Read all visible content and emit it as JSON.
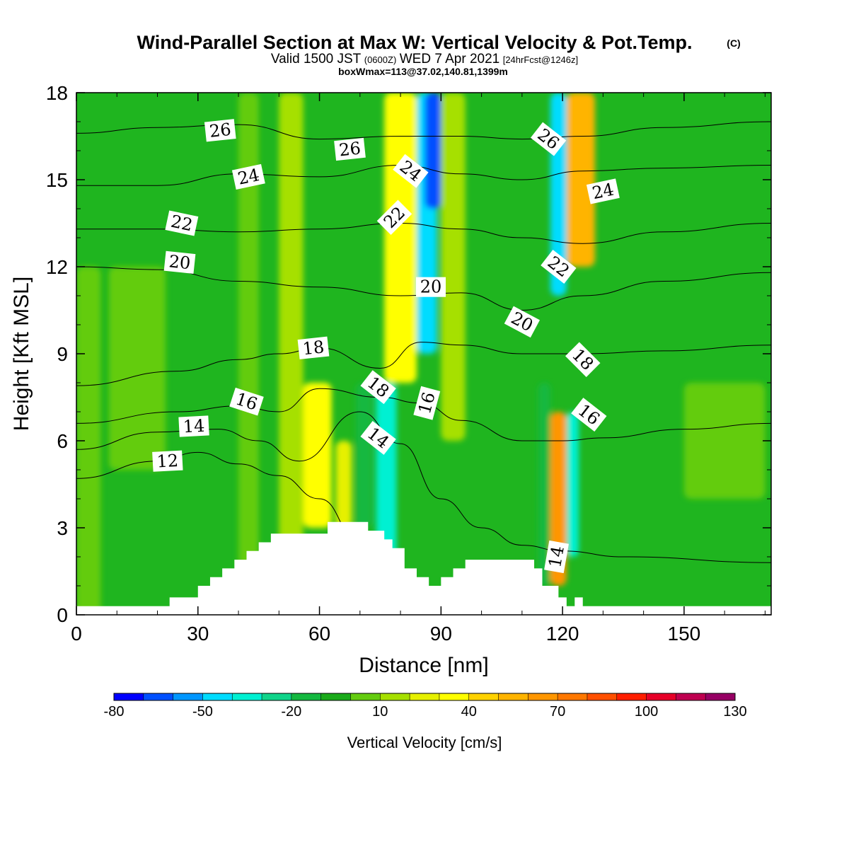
{
  "title": {
    "main": "Wind-Parallel Section at Max W: Vertical Velocity & Pot.Temp.",
    "copyright": "(C)",
    "valid_prefix": "Valid 1500 JST",
    "valid_utc": "(0600Z)",
    "valid_date": "WED 7 Apr 2021",
    "forecast": "[24hrFcst@1246z]",
    "box_info": "boxWmax=113@37.02,140.81,1399m"
  },
  "chart_data": {
    "type": "heatmap",
    "xlabel": "Distance [nm]",
    "ylabel": "Height [Kft MSL]",
    "xlim": [
      0,
      171.5
    ],
    "ylim": [
      0,
      18
    ],
    "x_ticks": [
      0,
      30,
      60,
      90,
      120,
      150
    ],
    "y_ticks": [
      0,
      3,
      6,
      9,
      12,
      15,
      18
    ],
    "colorbar": {
      "title": "Vertical Velocity [cm/s]",
      "ticks": [
        -80,
        -50,
        -20,
        10,
        40,
        70,
        100,
        130
      ],
      "levels": [
        -80,
        -70,
        -60,
        -50,
        -40,
        -30,
        -20,
        -10,
        0,
        10,
        20,
        30,
        40,
        50,
        60,
        70,
        80,
        90,
        100,
        110,
        120,
        130
      ],
      "colors": [
        "#0000ff",
        "#0050ff",
        "#0096ff",
        "#00dcff",
        "#00f0d2",
        "#10d48a",
        "#14b840",
        "#1aaa1a",
        "#64cc10",
        "#a6e000",
        "#e6f000",
        "#ffff00",
        "#ffd200",
        "#ffb400",
        "#ff9600",
        "#ff7800",
        "#ff5000",
        "#ff1e00",
        "#e60028",
        "#be0050",
        "#960064"
      ]
    },
    "background_color": "#1fb51f",
    "vertical_velocity_bands": [
      {
        "x": 0,
        "width": 6,
        "zbot": 0,
        "ztop": 12,
        "value": 5
      },
      {
        "x": 8,
        "width": 14,
        "zbot": 5,
        "ztop": 12,
        "value": 3
      },
      {
        "x": 40,
        "width": 5,
        "zbot": 1,
        "ztop": 18,
        "value": 5
      },
      {
        "x": 50,
        "width": 6,
        "zbot": 1,
        "ztop": 18,
        "value": 12
      },
      {
        "x": 56,
        "width": 7,
        "zbot": 3,
        "ztop": 8,
        "value": 32
      },
      {
        "x": 64,
        "width": 4,
        "zbot": 3,
        "ztop": 6,
        "value": 22
      },
      {
        "x": 69,
        "width": 4,
        "zbot": 3,
        "ztop": 8,
        "value": -12
      },
      {
        "x": 74,
        "width": 5,
        "zbot": 1,
        "ztop": 8,
        "value": -40
      },
      {
        "x": 76,
        "width": 8,
        "zbot": 8,
        "ztop": 18,
        "value": 35
      },
      {
        "x": 84,
        "width": 5,
        "zbot": 9,
        "ztop": 18,
        "value": -45
      },
      {
        "x": 86,
        "width": 4,
        "zbot": 14,
        "ztop": 18,
        "value": -65
      },
      {
        "x": 90,
        "width": 6,
        "zbot": 6,
        "ztop": 18,
        "value": 15
      },
      {
        "x": 114,
        "width": 3,
        "zbot": 1,
        "ztop": 8,
        "value": -20
      },
      {
        "x": 117,
        "width": 4,
        "zbot": 1,
        "ztop": 7,
        "value": 65
      },
      {
        "x": 121,
        "width": 3,
        "zbot": 2,
        "ztop": 7,
        "value": -35
      },
      {
        "x": 117,
        "width": 4,
        "zbot": 11,
        "ztop": 18,
        "value": -45
      },
      {
        "x": 121,
        "width": 7,
        "zbot": 12,
        "ztop": 18,
        "value": 50
      },
      {
        "x": 150,
        "width": 20,
        "zbot": 4,
        "ztop": 8,
        "value": 5
      }
    ],
    "terrain": [
      [
        0,
        0.3
      ],
      [
        22,
        0.3
      ],
      [
        23,
        0.6
      ],
      [
        29,
        0.6
      ],
      [
        30,
        1.0
      ],
      [
        33,
        1.3
      ],
      [
        36,
        1.6
      ],
      [
        39,
        1.9
      ],
      [
        42,
        2.2
      ],
      [
        45,
        2.5
      ],
      [
        48,
        2.8
      ],
      [
        61,
        2.8
      ],
      [
        62,
        3.2
      ],
      [
        71,
        3.2
      ],
      [
        72,
        2.9
      ],
      [
        76,
        2.6
      ],
      [
        78,
        2.3
      ],
      [
        81,
        1.6
      ],
      [
        84,
        1.3
      ],
      [
        87,
        1.0
      ],
      [
        90,
        1.3
      ],
      [
        93,
        1.6
      ],
      [
        96,
        1.9
      ],
      [
        112,
        1.9
      ],
      [
        113,
        1.6
      ],
      [
        115,
        1.0
      ],
      [
        117,
        1.0
      ],
      [
        119,
        0.6
      ],
      [
        121,
        0.3
      ],
      [
        123,
        0.6
      ],
      [
        125,
        0.3
      ],
      [
        171.5,
        0.3
      ]
    ],
    "theta_contours": [
      {
        "label": "12",
        "points": [
          [
            0,
            4.7
          ],
          [
            20,
            5.3
          ],
          [
            30,
            5.6
          ],
          [
            40,
            5.2
          ],
          [
            50,
            4.8
          ],
          [
            60,
            4.0
          ],
          [
            70,
            2.5
          ]
        ]
      },
      {
        "label": "14",
        "points": [
          [
            0,
            5.7
          ],
          [
            20,
            6.3
          ],
          [
            35,
            6.4
          ],
          [
            45,
            6.0
          ],
          [
            55,
            5.3
          ],
          [
            70,
            7.0
          ],
          [
            80,
            5.9
          ],
          [
            90,
            4.0
          ],
          [
            100,
            3.0
          ],
          [
            110,
            2.4
          ],
          [
            120,
            2.2
          ],
          [
            135,
            2.0
          ],
          [
            171.5,
            1.8
          ]
        ]
      },
      {
        "label": "16",
        "points": [
          [
            0,
            6.6
          ],
          [
            25,
            7.0
          ],
          [
            40,
            7.2
          ],
          [
            50,
            7.0
          ],
          [
            60,
            7.8
          ],
          [
            75,
            7.5
          ],
          [
            85,
            7.3
          ],
          [
            95,
            6.7
          ],
          [
            110,
            6.0
          ],
          [
            120,
            6.0
          ],
          [
            130,
            6.1
          ],
          [
            150,
            6.4
          ],
          [
            171.5,
            6.6
          ]
        ]
      },
      {
        "label": "18",
        "points": [
          [
            0,
            7.9
          ],
          [
            25,
            8.4
          ],
          [
            40,
            8.8
          ],
          [
            50,
            9.0
          ],
          [
            60,
            9.2
          ],
          [
            75,
            8.5
          ],
          [
            85,
            9.4
          ],
          [
            95,
            9.3
          ],
          [
            110,
            9.0
          ],
          [
            125,
            9.0
          ],
          [
            145,
            9.1
          ],
          [
            171.5,
            9.3
          ]
        ]
      },
      {
        "label": "20",
        "points": [
          [
            0,
            12.0
          ],
          [
            20,
            11.9
          ],
          [
            40,
            11.5
          ],
          [
            60,
            11.3
          ],
          [
            80,
            11.0
          ],
          [
            95,
            11.1
          ],
          [
            110,
            10.5
          ],
          [
            125,
            11.0
          ],
          [
            145,
            11.5
          ],
          [
            171.5,
            11.8
          ]
        ]
      },
      {
        "label": "22",
        "points": [
          [
            0,
            13.3
          ],
          [
            20,
            13.3
          ],
          [
            40,
            13.2
          ],
          [
            60,
            13.3
          ],
          [
            80,
            13.5
          ],
          [
            95,
            13.3
          ],
          [
            110,
            13.0
          ],
          [
            125,
            12.8
          ],
          [
            145,
            13.2
          ],
          [
            171.5,
            13.5
          ]
        ]
      },
      {
        "label": "24",
        "points": [
          [
            0,
            14.8
          ],
          [
            20,
            14.8
          ],
          [
            40,
            15.2
          ],
          [
            60,
            15.1
          ],
          [
            80,
            15.5
          ],
          [
            95,
            15.2
          ],
          [
            110,
            15.0
          ],
          [
            125,
            15.3
          ],
          [
            145,
            15.4
          ],
          [
            171.5,
            15.5
          ]
        ]
      },
      {
        "label": "26",
        "points": [
          [
            0,
            16.6
          ],
          [
            20,
            16.8
          ],
          [
            40,
            16.9
          ],
          [
            60,
            16.4
          ],
          [
            80,
            16.5
          ],
          [
            95,
            16.5
          ],
          [
            110,
            16.4
          ],
          [
            125,
            16.5
          ],
          [
            145,
            16.8
          ],
          [
            171.5,
            17.0
          ]
        ]
      }
    ],
    "contour_labels": [
      {
        "text": "26",
        "x": 35.5,
        "y": 16.7,
        "rot": -6
      },
      {
        "text": "26",
        "x": 67.5,
        "y": 16.05,
        "rot": -6
      },
      {
        "text": "26",
        "x": 116.5,
        "y": 16.4,
        "rot": 38
      },
      {
        "text": "24",
        "x": 42.5,
        "y": 15.1,
        "rot": -12
      },
      {
        "text": "24",
        "x": 82.5,
        "y": 15.3,
        "rot": 38
      },
      {
        "text": "24",
        "x": 130,
        "y": 14.6,
        "rot": -12
      },
      {
        "text": "22",
        "x": 26,
        "y": 13.5,
        "rot": 12
      },
      {
        "text": "22",
        "x": 78.5,
        "y": 13.7,
        "rot": -45
      },
      {
        "text": "22",
        "x": 119,
        "y": 12.0,
        "rot": 38
      },
      {
        "text": "20",
        "x": 25.5,
        "y": 12.15,
        "rot": 6
      },
      {
        "text": "20",
        "x": 87.5,
        "y": 11.3,
        "rot": 0
      },
      {
        "text": "20",
        "x": 110,
        "y": 10.1,
        "rot": 28
      },
      {
        "text": "18",
        "x": 58.5,
        "y": 9.2,
        "rot": -6
      },
      {
        "text": "18",
        "x": 74.5,
        "y": 7.85,
        "rot": 38
      },
      {
        "text": "18",
        "x": 125,
        "y": 8.8,
        "rot": 45
      },
      {
        "text": "16",
        "x": 42,
        "y": 7.35,
        "rot": 18
      },
      {
        "text": "16",
        "x": 86.5,
        "y": 7.3,
        "rot": -75
      },
      {
        "text": "16",
        "x": 126.5,
        "y": 6.9,
        "rot": 38
      },
      {
        "text": "14",
        "x": 29,
        "y": 6.5,
        "rot": -3
      },
      {
        "text": "14",
        "x": 74.5,
        "y": 6.1,
        "rot": 38
      },
      {
        "text": "14",
        "x": 118.5,
        "y": 2.0,
        "rot": -80
      },
      {
        "text": "12",
        "x": 22.5,
        "y": 5.3,
        "rot": -3
      }
    ]
  }
}
